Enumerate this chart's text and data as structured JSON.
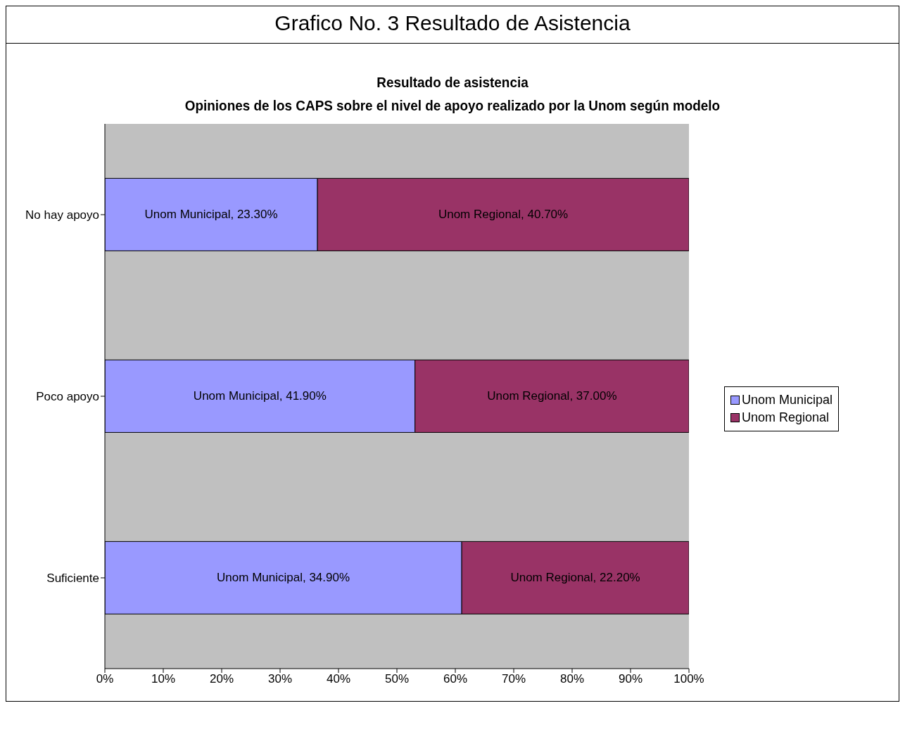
{
  "chart_data": {
    "type": "bar",
    "orientation": "horizontal",
    "stacked": true,
    "title": "Grafico No. 3 Resultado de Asistencia",
    "subtitle": "Resultado de asistencia\nOpiniones de los CAPS sobre el nivel de apoyo realizado por la Unom según modelo",
    "categories": [
      "No hay apoyo",
      "Poco apoyo",
      "Suficiente"
    ],
    "series": [
      {
        "name": "Unom Municipal",
        "color": "#9999ff",
        "values": [
          36.4,
          53.1,
          61.1
        ]
      },
      {
        "name": "Unom Regional",
        "color": "#993366",
        "values": [
          63.6,
          46.9,
          38.9
        ]
      }
    ],
    "annotations": [
      "Unom Municipal, 23.30%",
      "Unom Municipal, 41.90%",
      "Unom Municipal, 34.90%",
      "Unom Regional, 40.70%",
      "Unom Regional, 37.00%",
      "Unom Regional, 22.20%"
    ],
    "xlim": [
      0,
      100
    ],
    "xticks": [
      {
        "value": 0,
        "label": "0%"
      },
      {
        "value": 10,
        "label": "10%"
      },
      {
        "value": 20,
        "label": "20%"
      },
      {
        "value": 30,
        "label": "30%"
      },
      {
        "value": 40,
        "label": "40%"
      },
      {
        "value": 50,
        "label": "50%"
      },
      {
        "value": 60,
        "label": "60%"
      },
      {
        "value": 70,
        "label": "70%"
      },
      {
        "value": 80,
        "label": "80%"
      },
      {
        "value": 90,
        "label": "90%"
      },
      {
        "value": 100,
        "label": "100%"
      }
    ],
    "grid": false,
    "legend": "right"
  }
}
